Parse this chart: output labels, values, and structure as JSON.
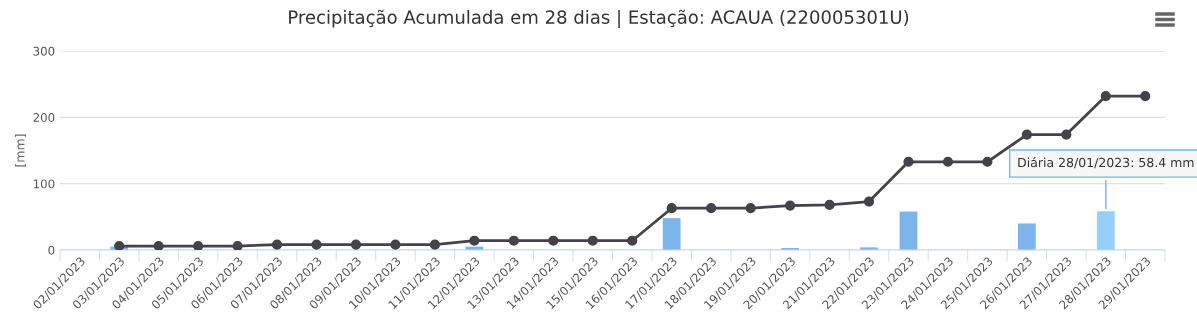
{
  "chart_data": {
    "type": "bar",
    "title": "Precipitação Acumulada em 28 dias | Estação: ACAUA (220005301U)",
    "ylabel": "[mm]",
    "categories": [
      "02/01/2023",
      "03/01/2023",
      "04/01/2023",
      "05/01/2023",
      "06/01/2023",
      "07/01/2023",
      "08/01/2023",
      "09/01/2023",
      "10/01/2023",
      "11/01/2023",
      "12/01/2023",
      "13/01/2023",
      "14/01/2023",
      "15/01/2023",
      "16/01/2023",
      "17/01/2023",
      "18/01/2023",
      "19/01/2023",
      "20/01/2023",
      "21/01/2023",
      "22/01/2023",
      "23/01/2023",
      "24/01/2023",
      "25/01/2023",
      "26/01/2023",
      "27/01/2023",
      "28/01/2023",
      "29/01/2023"
    ],
    "series": [
      {
        "color": "#7cb5ec",
        "colors": [
          null,
          null,
          null,
          null,
          null,
          null,
          null,
          null,
          null,
          null,
          null,
          null,
          null,
          null,
          null,
          null,
          null,
          null,
          null,
          null,
          null,
          null,
          null,
          null,
          null,
          null,
          "#95ceff",
          null
        ],
        "values": [
          0,
          5,
          0,
          0,
          0,
          0,
          0,
          0,
          0,
          0,
          5,
          0,
          0,
          0,
          0,
          48,
          0,
          0,
          3,
          0,
          4,
          58,
          0,
          0,
          40,
          0,
          58.4,
          0
        ]
      },
      {
        "type": "line",
        "color": "#434348",
        "marker": "circle",
        "line_style": "solid",
        "values": [
          null,
          6,
          6,
          6,
          6,
          8,
          8,
          8,
          8,
          8,
          14,
          14,
          14,
          14,
          14,
          63,
          63,
          63,
          67,
          68,
          73,
          133,
          133,
          133,
          174,
          174,
          232,
          232
        ]
      }
    ],
    "ylim": [
      0,
      300
    ],
    "yticks": [
      0,
      100,
      200,
      300
    ],
    "grid": "y",
    "legend": false,
    "annotations": [
      {
        "text": "Diária 28/01/2023: 58.4 mm",
        "x": "28/01/2023",
        "y": 58.4
      }
    ]
  }
}
